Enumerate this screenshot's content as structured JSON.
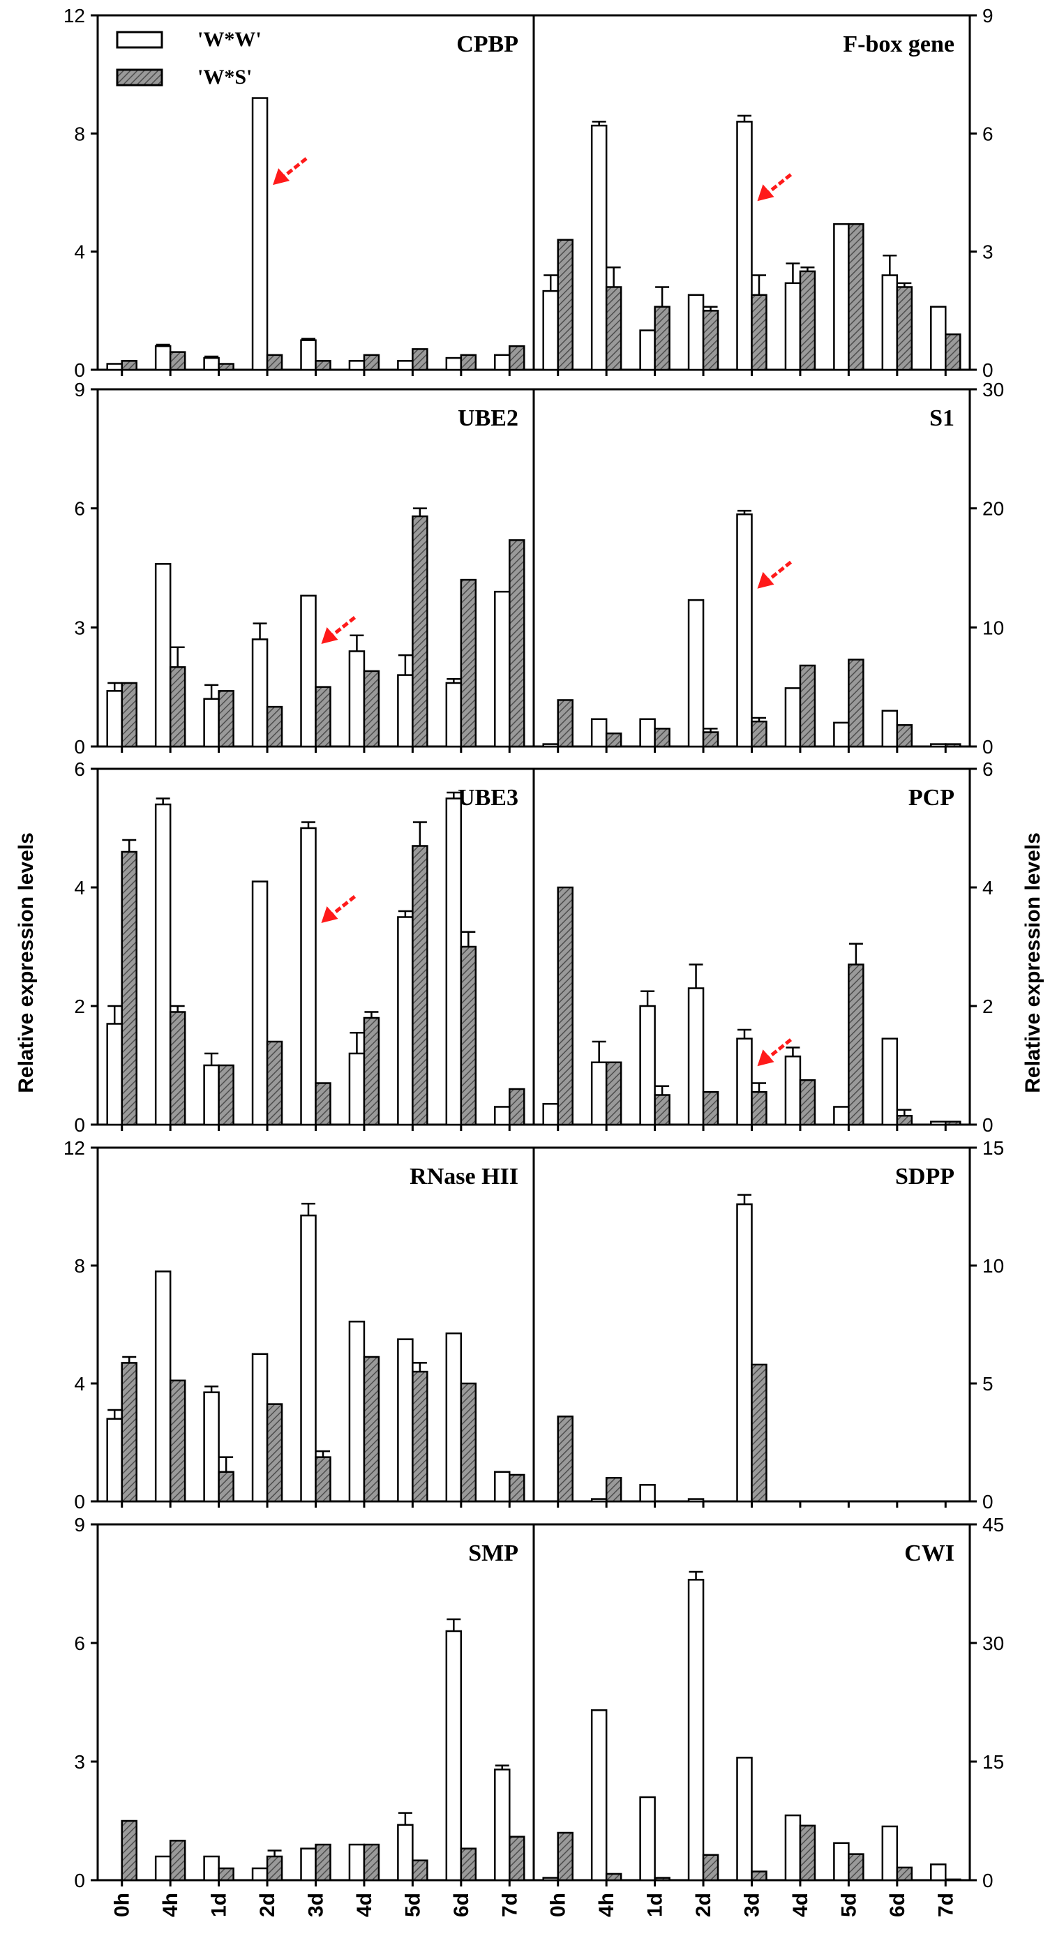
{
  "figure": {
    "ylabel_left": "Relative expression levels",
    "ylabel_right": "Relative expression levels",
    "categories": [
      "0h",
      "4h",
      "1d",
      "2d",
      "3d",
      "4d",
      "5d",
      "6d",
      "7d"
    ]
  },
  "legend": {
    "series_a": "'W*W'",
    "series_b": "'W*S'"
  },
  "colors": {
    "series_a_fill": "#ffffff",
    "series_b_fill": "#8a8a8a",
    "arrow": "#ff1a1a",
    "ink": "#000000"
  },
  "chart_data": [
    {
      "type": "bar",
      "title": "CPBP",
      "ylim": [
        0,
        12
      ],
      "ticks": [
        0,
        4,
        8,
        12
      ],
      "axis_side": "left",
      "categories": [
        "0h",
        "4h",
        "1d",
        "2d",
        "3d",
        "4d",
        "5d",
        "6d",
        "7d"
      ],
      "series": [
        {
          "name": "'W*W'",
          "values": [
            0.2,
            0.8,
            0.4,
            9.2,
            1.0,
            0.3,
            0.3,
            0.4,
            0.5
          ],
          "errors": [
            0,
            0.05,
            0.05,
            0,
            0.05,
            0,
            0,
            0,
            0
          ]
        },
        {
          "name": "'W*S'",
          "values": [
            0.3,
            0.6,
            0.2,
            0.5,
            0.3,
            0.5,
            0.7,
            0.5,
            0.8
          ],
          "errors": [
            0,
            0,
            0,
            0,
            0,
            0,
            0,
            0,
            0
          ]
        }
      ],
      "arrow_at": "2d"
    },
    {
      "type": "bar",
      "title": "F-box gene",
      "ylim": [
        0,
        9
      ],
      "ticks": [
        0,
        3,
        6,
        9
      ],
      "axis_side": "right",
      "categories": [
        "0h",
        "4h",
        "1d",
        "2d",
        "3d",
        "4d",
        "5d",
        "6d",
        "7d"
      ],
      "series": [
        {
          "name": "'W*W'",
          "values": [
            2.0,
            6.2,
            1.0,
            1.9,
            6.3,
            2.2,
            3.7,
            2.4,
            1.6
          ],
          "errors": [
            0.4,
            0.1,
            0,
            0,
            0.15,
            0.5,
            0,
            0.5,
            0
          ]
        },
        {
          "name": "'W*S'",
          "values": [
            3.3,
            2.1,
            1.6,
            1.5,
            1.9,
            2.5,
            3.7,
            2.1,
            0.9
          ],
          "errors": [
            0,
            0.5,
            0.5,
            0.1,
            0.5,
            0.1,
            0,
            0.1,
            0
          ]
        }
      ],
      "arrow_at": "3d"
    },
    {
      "type": "bar",
      "title": "UBE2",
      "ylim": [
        0,
        9
      ],
      "ticks": [
        0,
        3,
        6,
        9
      ],
      "axis_side": "left",
      "categories": [
        "0h",
        "4h",
        "1d",
        "2d",
        "3d",
        "4d",
        "5d",
        "6d",
        "7d"
      ],
      "series": [
        {
          "name": "'W*W'",
          "values": [
            1.4,
            4.6,
            1.2,
            2.7,
            3.8,
            2.4,
            1.8,
            1.6,
            3.9
          ],
          "errors": [
            0.2,
            0,
            0.35,
            0.4,
            0,
            0.4,
            0.5,
            0.1,
            0
          ]
        },
        {
          "name": "'W*S'",
          "values": [
            1.6,
            2.0,
            1.4,
            1.0,
            1.5,
            1.9,
            5.8,
            4.2,
            5.2
          ],
          "errors": [
            0,
            0.5,
            0,
            0,
            0,
            0,
            0.2,
            0,
            0
          ]
        }
      ],
      "arrow_at": "3d"
    },
    {
      "type": "bar",
      "title": "S1",
      "ylim": [
        0,
        30
      ],
      "ticks": [
        0,
        10,
        20,
        30
      ],
      "axis_side": "right",
      "categories": [
        "0h",
        "4h",
        "1d",
        "2d",
        "3d",
        "4d",
        "5d",
        "6d",
        "7d"
      ],
      "series": [
        {
          "name": "'W*W'",
          "values": [
            0.2,
            2.3,
            2.3,
            12.3,
            19.5,
            4.9,
            2.0,
            3.0,
            0.2
          ],
          "errors": [
            0,
            0,
            0,
            0,
            0.3,
            0,
            0,
            0,
            0
          ]
        },
        {
          "name": "'W*S'",
          "values": [
            3.9,
            1.1,
            1.5,
            1.2,
            2.1,
            6.8,
            7.3,
            1.8,
            0.2
          ],
          "errors": [
            0,
            0,
            0,
            0.3,
            0.3,
            0,
            0,
            0,
            0
          ]
        }
      ],
      "arrow_at": "3d"
    },
    {
      "type": "bar",
      "title": "UBE3",
      "ylim": [
        0,
        6
      ],
      "ticks": [
        0,
        2,
        4,
        6
      ],
      "axis_side": "left",
      "categories": [
        "0h",
        "4h",
        "1d",
        "2d",
        "3d",
        "4d",
        "5d",
        "6d",
        "7d"
      ],
      "series": [
        {
          "name": "'W*W'",
          "values": [
            1.7,
            5.4,
            1.0,
            4.1,
            5.0,
            1.2,
            3.5,
            5.5,
            0.3
          ],
          "errors": [
            0.3,
            0.1,
            0.2,
            0,
            0.1,
            0.35,
            0.1,
            0.1,
            0
          ]
        },
        {
          "name": "'W*S'",
          "values": [
            4.6,
            1.9,
            1.0,
            1.4,
            0.7,
            1.8,
            4.7,
            3.0,
            0.6
          ],
          "errors": [
            0.2,
            0.1,
            0,
            0,
            0,
            0.1,
            0.4,
            0.25,
            0
          ]
        }
      ],
      "arrow_at": "3d"
    },
    {
      "type": "bar",
      "title": "PCP",
      "ylim": [
        0,
        6
      ],
      "ticks": [
        0,
        2,
        4,
        6
      ],
      "axis_side": "right",
      "categories": [
        "0h",
        "4h",
        "1d",
        "2d",
        "3d",
        "4d",
        "5d",
        "6d",
        "7d"
      ],
      "series": [
        {
          "name": "'W*W'",
          "values": [
            0.35,
            1.05,
            2.0,
            2.3,
            1.45,
            1.15,
            0.3,
            1.45,
            0.05
          ],
          "errors": [
            0,
            0.35,
            0.25,
            0.4,
            0.15,
            0.15,
            0,
            0,
            0
          ]
        },
        {
          "name": "'W*S'",
          "values": [
            4.0,
            1.05,
            0.5,
            0.55,
            0.55,
            0.75,
            2.7,
            0.15,
            0.05
          ],
          "errors": [
            0,
            0,
            0.15,
            0,
            0.15,
            0,
            0.35,
            0.1,
            0
          ]
        }
      ],
      "arrow_at": "3d"
    },
    {
      "type": "bar",
      "title": "RNase HII",
      "ylim": [
        0,
        12
      ],
      "ticks": [
        0,
        4,
        8,
        12
      ],
      "axis_side": "left",
      "categories": [
        "0h",
        "4h",
        "1d",
        "2d",
        "3d",
        "4d",
        "5d",
        "6d",
        "7d"
      ],
      "series": [
        {
          "name": "'W*W'",
          "values": [
            2.8,
            7.8,
            3.7,
            5.0,
            9.7,
            6.1,
            5.5,
            5.7,
            1.0
          ],
          "errors": [
            0.3,
            0,
            0.2,
            0,
            0.4,
            0,
            0,
            0,
            0
          ]
        },
        {
          "name": "'W*S'",
          "values": [
            4.7,
            4.1,
            1.0,
            3.3,
            1.5,
            4.9,
            4.4,
            4.0,
            0.9
          ],
          "errors": [
            0.2,
            0,
            0.5,
            0,
            0.2,
            0,
            0.3,
            0,
            0
          ]
        }
      ],
      "arrow_at": null
    },
    {
      "type": "bar",
      "title": "SDPP",
      "ylim": [
        0,
        15
      ],
      "ticks": [
        0,
        5,
        10,
        15
      ],
      "axis_side": "right",
      "categories": [
        "0h",
        "4h",
        "1d",
        "2d",
        "3d",
        "4d",
        "5d",
        "6d",
        "7d"
      ],
      "series": [
        {
          "name": "'W*W'",
          "values": [
            0,
            0.1,
            0.7,
            0.1,
            12.6,
            0,
            0,
            0,
            0
          ],
          "errors": [
            0,
            0,
            0,
            0,
            0.4,
            0,
            0,
            0,
            0
          ]
        },
        {
          "name": "'W*S'",
          "values": [
            3.6,
            1.0,
            0,
            0,
            5.8,
            0,
            0,
            0,
            0
          ],
          "errors": [
            0,
            0,
            0,
            0,
            0,
            0,
            0,
            0,
            0
          ]
        }
      ],
      "arrow_at": null
    },
    {
      "type": "bar",
      "title": "SMP",
      "ylim": [
        0,
        9
      ],
      "ticks": [
        0,
        3,
        6,
        9
      ],
      "axis_side": "left",
      "categories": [
        "0h",
        "4h",
        "1d",
        "2d",
        "3d",
        "4d",
        "5d",
        "6d",
        "7d"
      ],
      "series": [
        {
          "name": "'W*W'",
          "values": [
            0,
            0.6,
            0.6,
            0.3,
            0.8,
            0.9,
            1.4,
            6.3,
            2.8
          ],
          "errors": [
            0,
            0,
            0,
            0,
            0,
            0,
            0.3,
            0.3,
            0.1
          ]
        },
        {
          "name": "'W*S'",
          "values": [
            1.5,
            1.0,
            0.3,
            0.6,
            0.9,
            0.9,
            0.5,
            0.8,
            1.1
          ],
          "errors": [
            0,
            0,
            0,
            0.15,
            0,
            0,
            0,
            0,
            0
          ]
        }
      ],
      "arrow_at": null
    },
    {
      "type": "bar",
      "title": "CWI",
      "ylim": [
        0,
        45
      ],
      "ticks": [
        0,
        15,
        30,
        45
      ],
      "axis_side": "right",
      "categories": [
        "0h",
        "4h",
        "1d",
        "2d",
        "3d",
        "4d",
        "5d",
        "6d",
        "7d"
      ],
      "series": [
        {
          "name": "'W*W'",
          "values": [
            0.3,
            21.5,
            10.5,
            38.0,
            15.5,
            8.2,
            4.7,
            6.8,
            2.0
          ],
          "errors": [
            0,
            0,
            0,
            1.0,
            0,
            0,
            0,
            0,
            0
          ]
        },
        {
          "name": "'W*S'",
          "values": [
            6.0,
            0.8,
            0.3,
            3.2,
            1.1,
            6.9,
            3.3,
            1.6,
            0.1
          ],
          "errors": [
            0,
            0,
            0,
            0,
            0,
            0,
            0,
            0,
            0
          ]
        }
      ],
      "arrow_at": null
    }
  ]
}
